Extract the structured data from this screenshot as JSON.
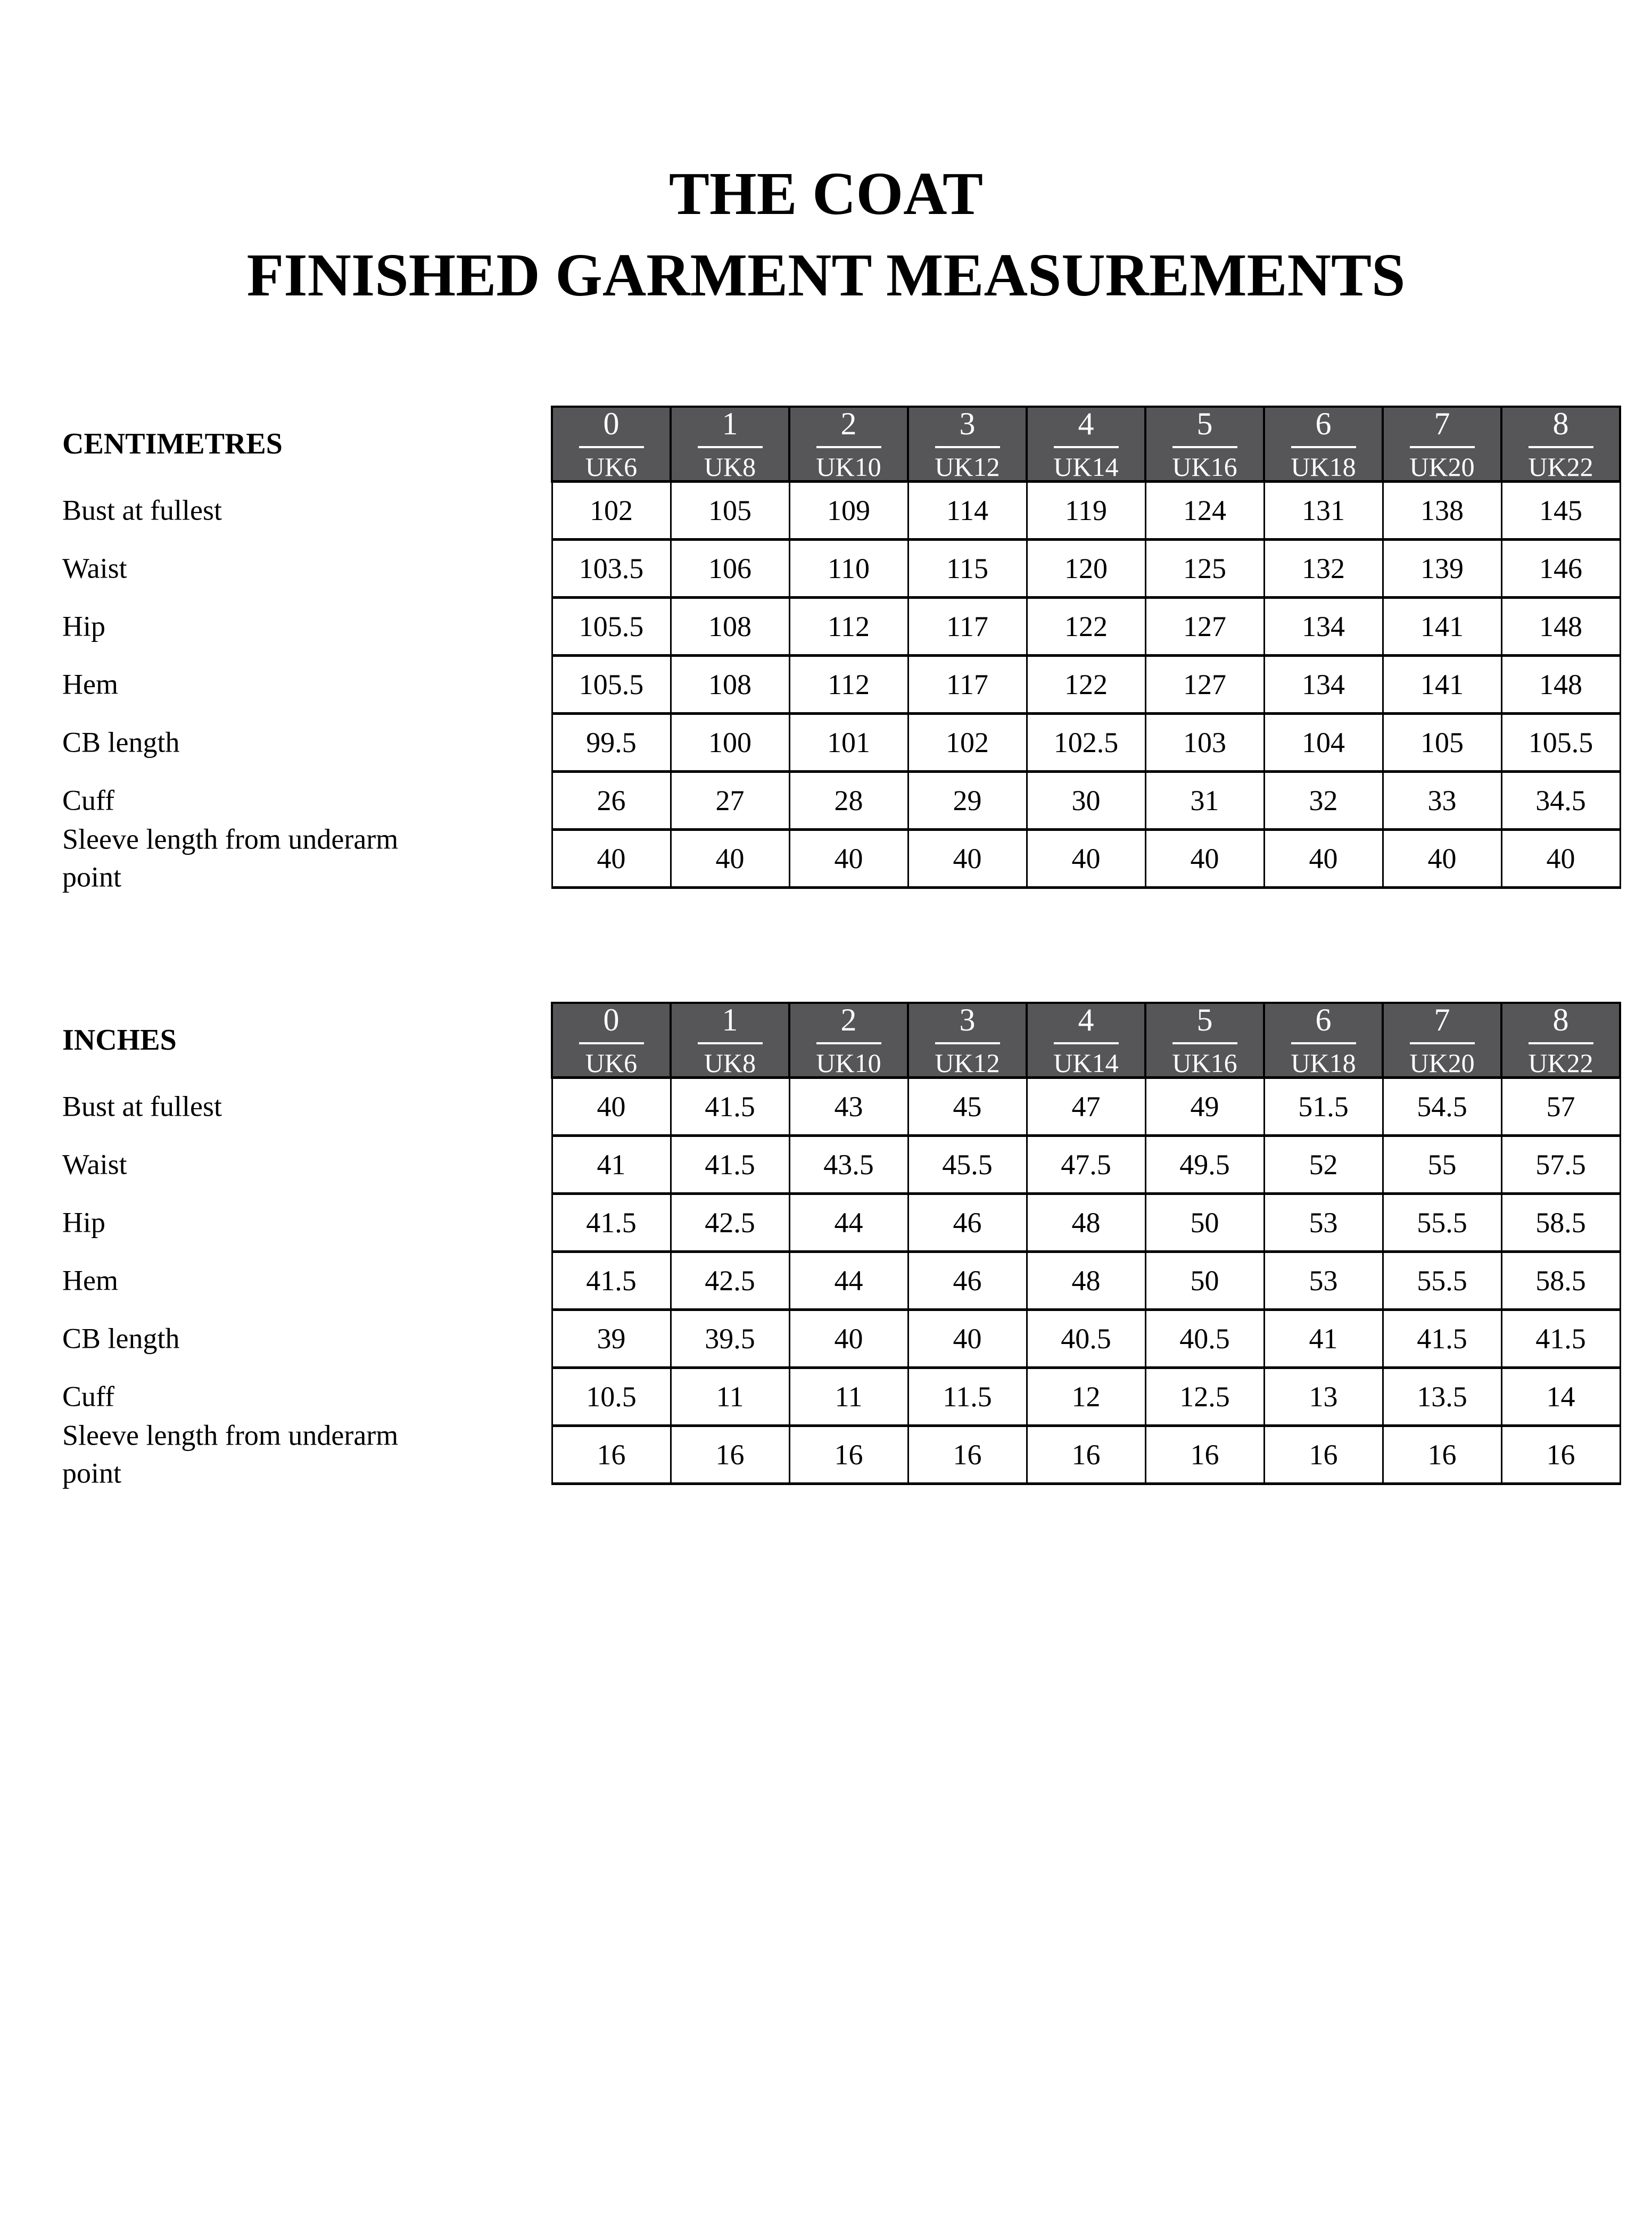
{
  "title": {
    "line1": "THE COAT",
    "line2": "FINISHED GARMENT MEASUREMENTS"
  },
  "colors": {
    "header_bg": "#565659",
    "header_text": "#ffffff",
    "border": "#000000",
    "page_bg": "#ffffff"
  },
  "sizes": [
    {
      "num": "0",
      "uk": "UK6"
    },
    {
      "num": "1",
      "uk": "UK8"
    },
    {
      "num": "2",
      "uk": "UK10"
    },
    {
      "num": "3",
      "uk": "UK12"
    },
    {
      "num": "4",
      "uk": "UK14"
    },
    {
      "num": "5",
      "uk": "UK16"
    },
    {
      "num": "6",
      "uk": "UK18"
    },
    {
      "num": "7",
      "uk": "UK20"
    },
    {
      "num": "8",
      "uk": "UK22"
    }
  ],
  "tables": [
    {
      "id": "centimetres",
      "unit_label": "CENTIMETRES",
      "rows": [
        {
          "label": "Bust at fullest",
          "values": [
            "102",
            "105",
            "109",
            "114",
            "119",
            "124",
            "131",
            "138",
            "145"
          ]
        },
        {
          "label": "Waist",
          "values": [
            "103.5",
            "106",
            "110",
            "115",
            "120",
            "125",
            "132",
            "139",
            "146"
          ]
        },
        {
          "label": "Hip",
          "values": [
            "105.5",
            "108",
            "112",
            "117",
            "122",
            "127",
            "134",
            "141",
            "148"
          ]
        },
        {
          "label": "Hem",
          "values": [
            "105.5",
            "108",
            "112",
            "117",
            "122",
            "127",
            "134",
            "141",
            "148"
          ]
        },
        {
          "label": "CB length",
          "values": [
            "99.5",
            "100",
            "101",
            "102",
            "102.5",
            "103",
            "104",
            "105",
            "105.5"
          ]
        },
        {
          "label": "Cuff",
          "values": [
            "26",
            "27",
            "28",
            "29",
            "30",
            "31",
            "32",
            "33",
            "34.5"
          ]
        },
        {
          "label": "Sleeve length from underarm point",
          "values": [
            "40",
            "40",
            "40",
            "40",
            "40",
            "40",
            "40",
            "40",
            "40"
          ]
        }
      ]
    },
    {
      "id": "inches",
      "unit_label": "INCHES",
      "rows": [
        {
          "label": "Bust at fullest",
          "values": [
            "40",
            "41.5",
            "43",
            "45",
            "47",
            "49",
            "51.5",
            "54.5",
            "57"
          ]
        },
        {
          "label": "Waist",
          "values": [
            "41",
            "41.5",
            "43.5",
            "45.5",
            "47.5",
            "49.5",
            "52",
            "55",
            "57.5"
          ]
        },
        {
          "label": "Hip",
          "values": [
            "41.5",
            "42.5",
            "44",
            "46",
            "48",
            "50",
            "53",
            "55.5",
            "58.5"
          ]
        },
        {
          "label": "Hem",
          "values": [
            "41.5",
            "42.5",
            "44",
            "46",
            "48",
            "50",
            "53",
            "55.5",
            "58.5"
          ]
        },
        {
          "label": "CB length",
          "values": [
            "39",
            "39.5",
            "40",
            "40",
            "40.5",
            "40.5",
            "41",
            "41.5",
            "41.5"
          ]
        },
        {
          "label": "Cuff",
          "values": [
            "10.5",
            "11",
            "11",
            "11.5",
            "12",
            "12.5",
            "13",
            "13.5",
            "14"
          ]
        },
        {
          "label": "Sleeve length from underarm point",
          "values": [
            "16",
            "16",
            "16",
            "16",
            "16",
            "16",
            "16",
            "16",
            "16"
          ]
        }
      ]
    }
  ]
}
